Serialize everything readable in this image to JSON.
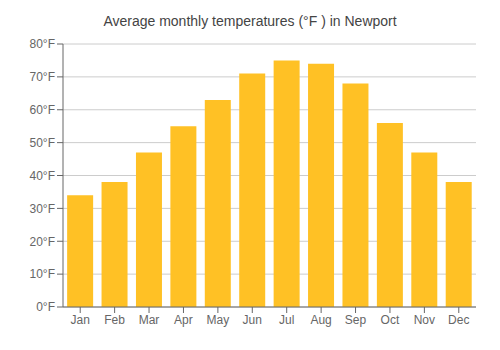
{
  "chart_data": {
    "type": "bar",
    "title": "Average monthly temperatures (°F ) in Newport",
    "categories": [
      "Jan",
      "Feb",
      "Mar",
      "Apr",
      "May",
      "Jun",
      "Jul",
      "Aug",
      "Sep",
      "Oct",
      "Nov",
      "Dec"
    ],
    "values": [
      34,
      38,
      47,
      55,
      63,
      71,
      75,
      74,
      68,
      56,
      47,
      38
    ],
    "color": "#FFC125",
    "ylim": [
      0,
      80
    ],
    "yticks": [
      {
        "value": 0,
        "label": "0°F"
      },
      {
        "value": 10,
        "label": "10°F"
      },
      {
        "value": 20,
        "label": "20°F"
      },
      {
        "value": 30,
        "label": "30°F"
      },
      {
        "value": 40,
        "label": "40°F"
      },
      {
        "value": 50,
        "label": "50°F"
      },
      {
        "value": 60,
        "label": "60°F"
      },
      {
        "value": 70,
        "label": "70°F"
      },
      {
        "value": 80,
        "label": "80°F"
      }
    ],
    "grid": true
  }
}
